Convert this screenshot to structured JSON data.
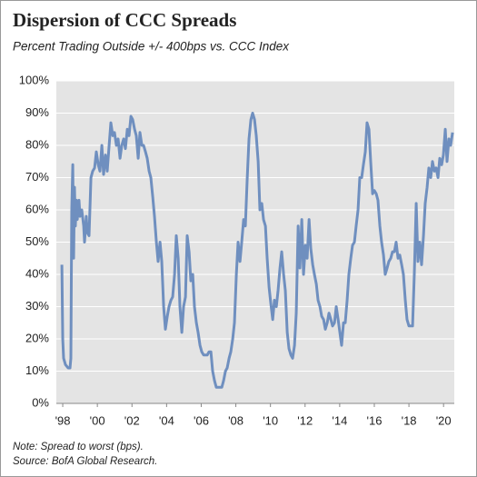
{
  "chart_data": {
    "type": "line",
    "title": "Dispersion of CCC Spreads",
    "subtitle": "Percent Trading Outside +/- 400bps vs. CCC Index",
    "notes": [
      "Note: Spread to worst (bps).",
      "Source: BofA Global Research."
    ],
    "color": "#6f8fbf",
    "grid": true,
    "xlim": [
      1997.63,
      2020.62
    ],
    "ylim": [
      0,
      100
    ],
    "xticks": [
      {
        "value": 1998,
        "label": "'98"
      },
      {
        "value": 2000,
        "label": "'00"
      },
      {
        "value": 2002,
        "label": "'02"
      },
      {
        "value": 2004,
        "label": "'04"
      },
      {
        "value": 2006,
        "label": "'06"
      },
      {
        "value": 2008,
        "label": "'08"
      },
      {
        "value": 2010,
        "label": "'10"
      },
      {
        "value": 2012,
        "label": "'12"
      },
      {
        "value": 2014,
        "label": "'14"
      },
      {
        "value": 2016,
        "label": "'16"
      },
      {
        "value": 2018,
        "label": "'18"
      },
      {
        "value": 2020,
        "label": "'20"
      }
    ],
    "yticks": [
      {
        "value": 0,
        "label": "0%"
      },
      {
        "value": 10,
        "label": "10%"
      },
      {
        "value": 20,
        "label": "20%"
      },
      {
        "value": 30,
        "label": "30%"
      },
      {
        "value": 40,
        "label": "40%"
      },
      {
        "value": 50,
        "label": "50%"
      },
      {
        "value": 60,
        "label": "60%"
      },
      {
        "value": 70,
        "label": "70%"
      },
      {
        "value": 80,
        "label": "80%"
      },
      {
        "value": 90,
        "label": "90%"
      },
      {
        "value": 100,
        "label": "100%"
      }
    ],
    "x": [
      1997.95,
      1998.0,
      1998.05,
      1998.16,
      1998.31,
      1998.42,
      1998.47,
      1998.52,
      1998.58,
      1998.63,
      1998.68,
      1998.73,
      1998.79,
      1998.84,
      1998.94,
      1999.0,
      1999.1,
      1999.21,
      1999.26,
      1999.36,
      1999.42,
      1999.52,
      1999.63,
      1999.73,
      1999.84,
      1999.94,
      2000.05,
      2000.15,
      2000.26,
      2000.36,
      2000.47,
      2000.57,
      2000.68,
      2000.78,
      2000.89,
      2000.99,
      2001.1,
      2001.2,
      2001.31,
      2001.41,
      2001.52,
      2001.62,
      2001.73,
      2001.83,
      2001.94,
      2002.04,
      2002.15,
      2002.25,
      2002.36,
      2002.46,
      2002.57,
      2002.67,
      2002.78,
      2002.88,
      2002.99,
      2003.09,
      2003.2,
      2003.3,
      2003.41,
      2003.51,
      2003.62,
      2003.72,
      2003.83,
      2003.93,
      2004.04,
      2004.14,
      2004.25,
      2004.35,
      2004.46,
      2004.56,
      2004.67,
      2004.77,
      2004.88,
      2004.98,
      2005.09,
      2005.19,
      2005.3,
      2005.4,
      2005.51,
      2005.61,
      2005.72,
      2005.82,
      2005.93,
      2006.03,
      2006.14,
      2006.24,
      2006.35,
      2006.45,
      2006.56,
      2006.66,
      2006.77,
      2006.87,
      2006.98,
      2007.08,
      2007.19,
      2007.29,
      2007.4,
      2007.5,
      2007.61,
      2007.71,
      2007.82,
      2007.92,
      2008.03,
      2008.13,
      2008.24,
      2008.34,
      2008.45,
      2008.55,
      2008.66,
      2008.76,
      2008.87,
      2008.97,
      2009.08,
      2009.18,
      2009.29,
      2009.39,
      2009.5,
      2009.6,
      2009.71,
      2009.81,
      2009.92,
      2010.02,
      2010.13,
      2010.23,
      2010.34,
      2010.44,
      2010.55,
      2010.65,
      2010.76,
      2010.86,
      2010.97,
      2011.07,
      2011.18,
      2011.28,
      2011.39,
      2011.49,
      2011.6,
      2011.7,
      2011.81,
      2011.91,
      2012.02,
      2012.12,
      2012.23,
      2012.33,
      2012.44,
      2012.54,
      2012.65,
      2012.75,
      2012.86,
      2012.96,
      2013.07,
      2013.17,
      2013.28,
      2013.38,
      2013.49,
      2013.59,
      2013.7,
      2013.8,
      2013.91,
      2014.01,
      2014.11,
      2014.22,
      2014.32,
      2014.43,
      2014.53,
      2014.64,
      2014.74,
      2014.85,
      2014.95,
      2015.06,
      2015.16,
      2015.27,
      2015.37,
      2015.48,
      2015.58,
      2015.69,
      2015.79,
      2015.9,
      2016.0,
      2016.11,
      2016.21,
      2016.32,
      2016.42,
      2016.53,
      2016.63,
      2016.74,
      2016.84,
      2016.95,
      2017.05,
      2017.16,
      2017.26,
      2017.37,
      2017.47,
      2017.58,
      2017.68,
      2017.79,
      2017.89,
      2018.0,
      2018.1,
      2018.21,
      2018.31,
      2018.42,
      2018.52,
      2018.63,
      2018.73,
      2018.84,
      2018.94,
      2019.05,
      2019.15,
      2019.26,
      2019.36,
      2019.47,
      2019.57,
      2019.68,
      2019.78,
      2019.89,
      2019.99,
      2020.1,
      2020.2,
      2020.31,
      2020.41,
      2020.52
    ],
    "values": [
      43,
      20,
      14,
      12,
      11,
      11,
      14,
      60,
      74,
      45,
      67,
      55,
      63,
      57,
      63,
      58,
      60,
      55,
      50,
      58,
      53,
      52,
      70,
      72,
      73,
      78,
      74,
      72,
      80,
      71,
      77,
      72,
      80,
      87,
      83,
      84,
      80,
      82,
      76,
      80,
      82,
      79,
      85,
      83,
      89,
      88,
      85,
      83,
      76,
      84,
      80,
      80,
      78,
      76,
      72,
      70,
      64,
      58,
      50,
      44,
      50,
      44,
      30,
      23,
      27,
      30,
      32,
      33,
      40,
      52,
      45,
      30,
      22,
      30,
      33,
      52,
      47,
      38,
      40,
      30,
      25,
      22,
      18,
      16,
      15,
      15,
      15,
      16,
      16,
      10,
      7,
      5,
      5,
      5,
      5,
      7,
      10,
      11,
      14,
      16,
      20,
      25,
      40,
      50,
      44,
      50,
      57,
      55,
      70,
      82,
      88,
      90,
      88,
      83,
      75,
      60,
      62,
      57,
      55,
      45,
      36,
      31,
      26,
      32,
      30,
      35,
      42,
      47,
      40,
      35,
      22,
      17,
      15,
      14,
      18,
      28,
      55,
      42,
      57,
      40,
      49,
      45,
      57,
      48,
      43,
      40,
      37,
      32,
      30,
      27,
      26,
      23,
      25,
      28,
      26,
      24,
      25,
      30,
      26,
      22,
      18,
      25,
      25,
      32,
      40,
      45,
      49,
      50,
      55,
      60,
      70,
      70,
      74,
      78,
      87,
      85,
      75,
      65,
      66,
      65,
      63,
      55,
      50,
      46,
      40,
      42,
      44,
      45,
      47,
      47,
      50,
      45,
      46,
      43,
      40,
      32,
      26,
      24,
      24,
      24,
      40,
      62,
      44,
      50,
      43,
      52,
      62,
      67,
      73,
      70,
      75,
      72,
      73,
      70,
      76,
      74,
      77,
      85,
      75,
      82,
      80,
      84
    ]
  }
}
